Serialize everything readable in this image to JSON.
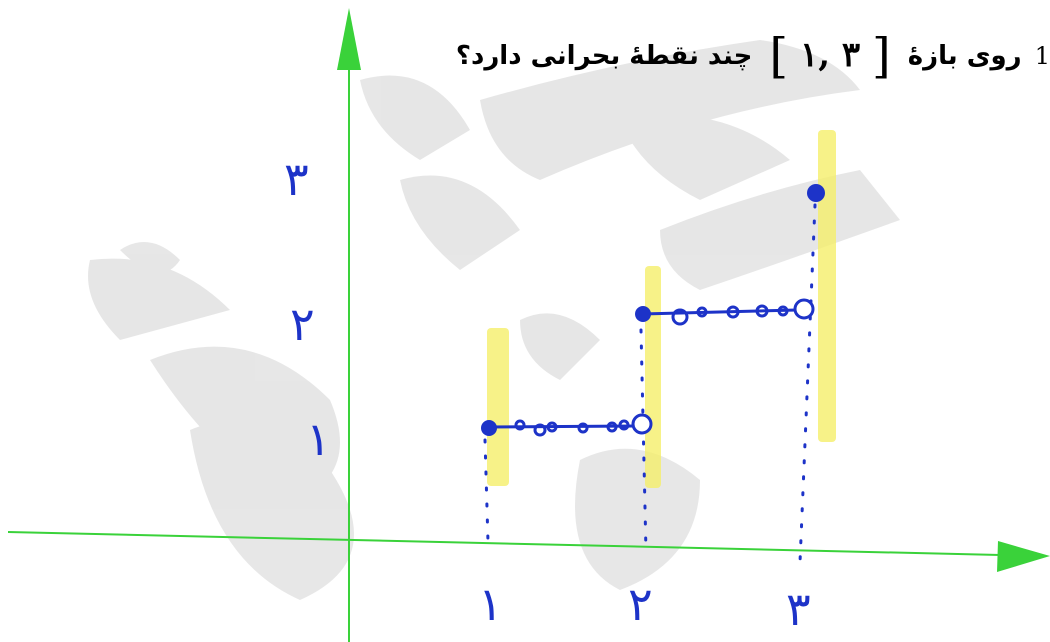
{
  "question": {
    "number": "1",
    "text_before": "روی بازهٔ",
    "interval_open": "[",
    "interval_value": "۱, ۳",
    "interval_close": "]",
    "text_after": "چند نقطهٔ بحرانی دارد؟"
  },
  "axes": {
    "x_ticks": [
      "۱",
      "۲",
      "۳"
    ],
    "y_ticks": [
      "۱",
      "۲",
      "۳"
    ]
  },
  "colors": {
    "axis": "#3ad23a",
    "ink": "#1d33c8",
    "highlight": "#f5ef6a",
    "watermark": "#c9c9c9"
  }
}
